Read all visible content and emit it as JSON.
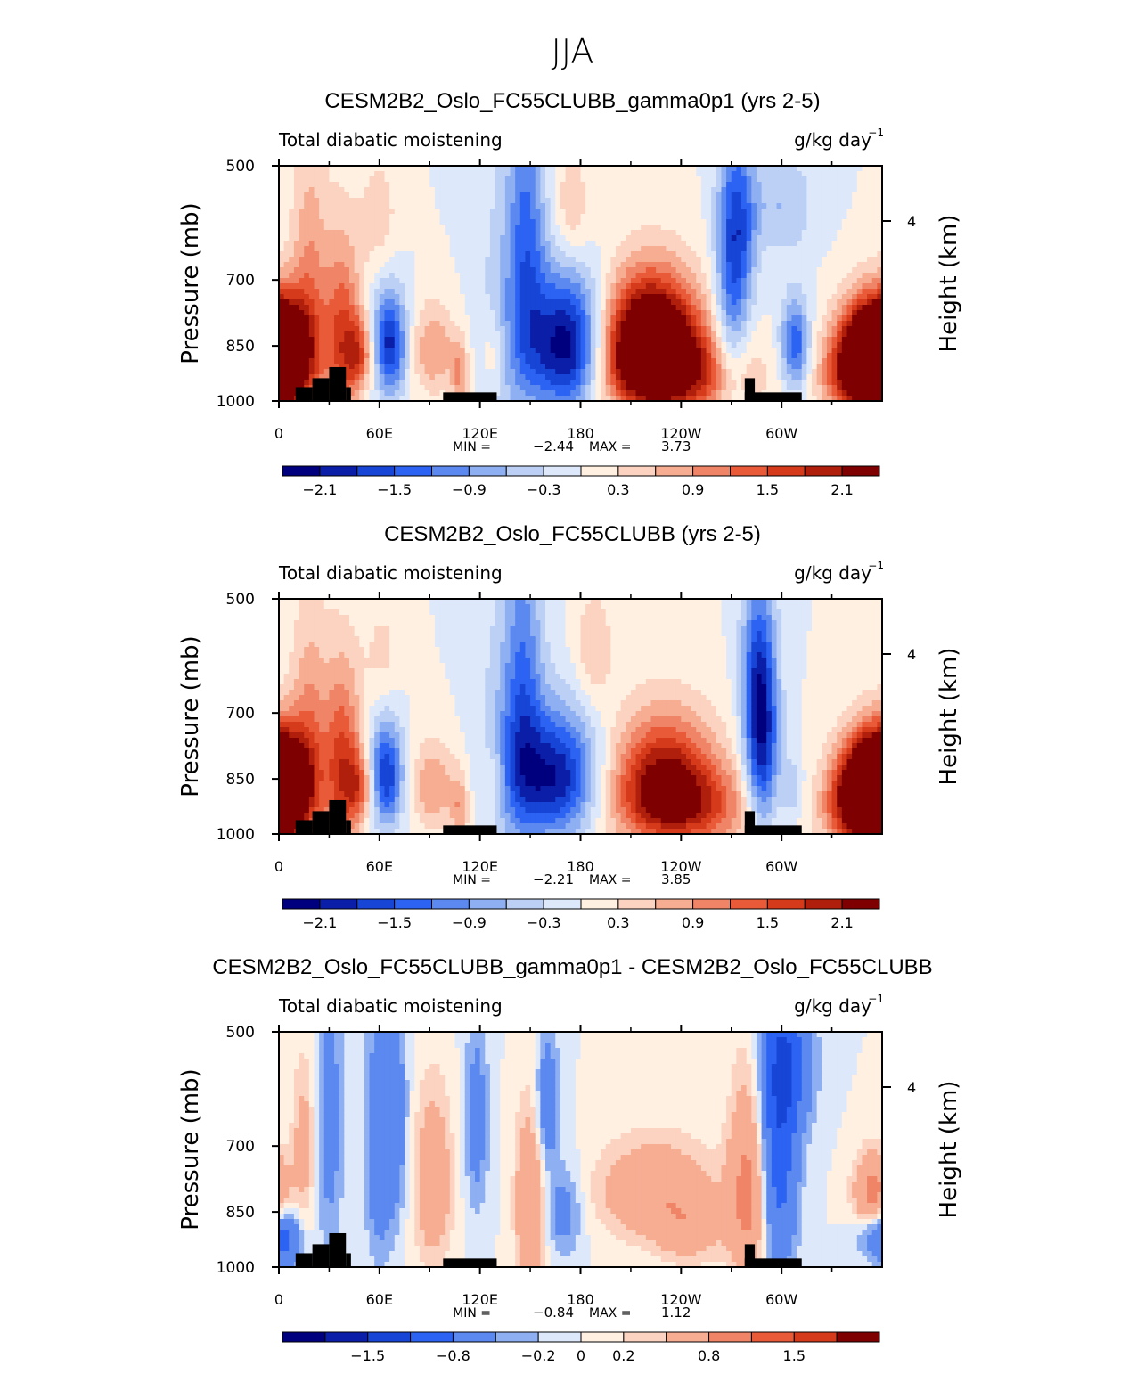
{
  "page_title": "JJA",
  "chart_data": [
    {
      "type": "heatmap",
      "title": "CESM2B2_Oslo_FC55CLUBB_gamma0p1 (yrs 2-5)",
      "left_label": "Total diabatic moistening",
      "right_label": "g/kg day",
      "right_label_sup": "−1",
      "ylabel": "Pressure (mb)",
      "ylabel_right": "Height (km)",
      "y_ticks": [
        "500",
        "700",
        "850",
        "1000"
      ],
      "y_right_ticks": [
        "4"
      ],
      "x_ticks": [
        "0",
        "60E",
        "120E",
        "180",
        "120W",
        "60W"
      ],
      "stats_min_label": "MIN =",
      "stats_min": "−2.44",
      "stats_max_label": "MAX =",
      "stats_max": "3.73",
      "colorbar_labels": [
        "−2.1",
        "−1.5",
        "−0.9",
        "−0.3",
        "0.3",
        "0.9",
        "1.5",
        "2.1"
      ],
      "features": [
        {
          "lon": 2,
          "p": 880,
          "v": 2.0,
          "sx": 10,
          "sy": 90
        },
        {
          "lon": 18,
          "p": 760,
          "v": 1.0,
          "sx": 8,
          "sy": 220
        },
        {
          "lon": 38,
          "p": 830,
          "v": 1.5,
          "sx": 8,
          "sy": 160
        },
        {
          "lon": 48,
          "p": 870,
          "v": 1.2,
          "sx": 6,
          "sy": 60
        },
        {
          "lon": 66,
          "p": 845,
          "v": -1.9,
          "sx": 7,
          "sy": 90
        },
        {
          "lon": 60,
          "p": 580,
          "v": 0.5,
          "sx": 8,
          "sy": 70
        },
        {
          "lon": 92,
          "p": 860,
          "v": 0.9,
          "sx": 9,
          "sy": 80
        },
        {
          "lon": 108,
          "p": 930,
          "v": 0.9,
          "sx": 4,
          "sy": 70
        },
        {
          "lon": 128,
          "p": 870,
          "v": 0.5,
          "sx": 5,
          "sy": 70
        },
        {
          "lon": 148,
          "p": 620,
          "v": -1.1,
          "sx": 8,
          "sy": 220
        },
        {
          "lon": 172,
          "p": 850,
          "v": -2.4,
          "sx": 16,
          "sy": 120
        },
        {
          "lon": 135,
          "p": 800,
          "v": -0.5,
          "sx": 12,
          "sy": 240
        },
        {
          "lon": 175,
          "p": 570,
          "v": 0.6,
          "sx": 8,
          "sy": 70
        },
        {
          "lon": 222,
          "p": 840,
          "v": 3.5,
          "sx": 20,
          "sy": 110
        },
        {
          "lon": 240,
          "p": 930,
          "v": 1.4,
          "sx": 30,
          "sy": 80
        },
        {
          "lon": 270,
          "p": 710,
          "v": -1.2,
          "sx": 7,
          "sy": 200
        },
        {
          "lon": 276,
          "p": 600,
          "v": -0.9,
          "sx": 7,
          "sy": 100
        },
        {
          "lon": 308,
          "p": 850,
          "v": -1.5,
          "sx": 6,
          "sy": 80
        },
        {
          "lon": 300,
          "p": 560,
          "v": -0.6,
          "sx": 14,
          "sy": 60
        },
        {
          "lon": 355,
          "p": 860,
          "v": 3.2,
          "sx": 14,
          "sy": 90
        },
        {
          "lon": 345,
          "p": 930,
          "v": 1.8,
          "sx": 14,
          "sy": 80
        }
      ]
    },
    {
      "type": "heatmap",
      "title": "CESM2B2_Oslo_FC55CLUBB (yrs 2-5)",
      "left_label": "Total diabatic moistening",
      "right_label": "g/kg day",
      "right_label_sup": "−1",
      "ylabel": "Pressure (mb)",
      "ylabel_right": "Height (km)",
      "y_ticks": [
        "500",
        "700",
        "850",
        "1000"
      ],
      "y_right_ticks": [
        "4"
      ],
      "x_ticks": [
        "0",
        "60E",
        "120E",
        "180",
        "120W",
        "60W"
      ],
      "stats_min_label": "MIN =",
      "stats_min": "−2.21",
      "stats_max_label": "MAX =",
      "stats_max": "3.85",
      "colorbar_labels": [
        "−2.1",
        "−1.5",
        "−0.9",
        "−0.3",
        "0.3",
        "0.9",
        "1.5",
        "2.1"
      ],
      "features": [
        {
          "lon": 2,
          "p": 880,
          "v": 2.0,
          "sx": 10,
          "sy": 90
        },
        {
          "lon": 18,
          "p": 780,
          "v": 1.0,
          "sx": 8,
          "sy": 200
        },
        {
          "lon": 38,
          "p": 820,
          "v": 1.6,
          "sx": 8,
          "sy": 160
        },
        {
          "lon": 48,
          "p": 870,
          "v": 1.1,
          "sx": 6,
          "sy": 60
        },
        {
          "lon": 64,
          "p": 840,
          "v": -1.8,
          "sx": 7,
          "sy": 90
        },
        {
          "lon": 62,
          "p": 590,
          "v": 0.4,
          "sx": 8,
          "sy": 70
        },
        {
          "lon": 92,
          "p": 870,
          "v": 0.9,
          "sx": 9,
          "sy": 80
        },
        {
          "lon": 108,
          "p": 930,
          "v": 0.8,
          "sx": 4,
          "sy": 70
        },
        {
          "lon": 128,
          "p": 870,
          "v": 0.6,
          "sx": 5,
          "sy": 70
        },
        {
          "lon": 146,
          "p": 640,
          "v": -1.0,
          "sx": 8,
          "sy": 200
        },
        {
          "lon": 165,
          "p": 845,
          "v": -2.1,
          "sx": 18,
          "sy": 110
        },
        {
          "lon": 135,
          "p": 800,
          "v": -0.5,
          "sx": 12,
          "sy": 240
        },
        {
          "lon": 188,
          "p": 580,
          "v": 0.6,
          "sx": 8,
          "sy": 70
        },
        {
          "lon": 230,
          "p": 845,
          "v": 2.0,
          "sx": 22,
          "sy": 110
        },
        {
          "lon": 245,
          "p": 930,
          "v": 1.2,
          "sx": 30,
          "sy": 80
        },
        {
          "lon": 288,
          "p": 760,
          "v": -2.1,
          "sx": 7,
          "sy": 160
        },
        {
          "lon": 285,
          "p": 600,
          "v": -0.7,
          "sx": 7,
          "sy": 100
        },
        {
          "lon": 306,
          "p": 880,
          "v": -0.6,
          "sx": 5,
          "sy": 60
        },
        {
          "lon": 355,
          "p": 860,
          "v": 3.3,
          "sx": 14,
          "sy": 90
        },
        {
          "lon": 345,
          "p": 930,
          "v": 1.6,
          "sx": 14,
          "sy": 80
        }
      ]
    },
    {
      "type": "heatmap",
      "title": "CESM2B2_Oslo_FC55CLUBB_gamma0p1 - CESM2B2_Oslo_FC55CLUBB",
      "left_label": "Total diabatic moistening",
      "right_label": "g/kg day",
      "right_label_sup": "−1",
      "ylabel": "Pressure (mb)",
      "ylabel_right": "Height (km)",
      "y_ticks": [
        "500",
        "700",
        "850",
        "1000"
      ],
      "y_right_ticks": [
        "4"
      ],
      "x_ticks": [
        "0",
        "60E",
        "120E",
        "180",
        "120W",
        "60W"
      ],
      "stats_min_label": "MIN =",
      "stats_min": "−0.84",
      "stats_max_label": "MAX =",
      "stats_max": "1.12",
      "colorbar_labels": [
        "−1.5",
        "−0.8",
        "−0.2",
        "0",
        "0.2",
        "0.8",
        "1.5"
      ],
      "features": [
        {
          "lon": 5,
          "p": 920,
          "v": -0.5,
          "sx": 6,
          "sy": 60
        },
        {
          "lon": 15,
          "p": 700,
          "v": 0.3,
          "sx": 5,
          "sy": 120
        },
        {
          "lon": 30,
          "p": 650,
          "v": -0.3,
          "sx": 6,
          "sy": 200
        },
        {
          "lon": 60,
          "p": 700,
          "v": -0.4,
          "sx": 6,
          "sy": 180
        },
        {
          "lon": 70,
          "p": 650,
          "v": -0.3,
          "sx": 5,
          "sy": 150
        },
        {
          "lon": 92,
          "p": 780,
          "v": 0.4,
          "sx": 8,
          "sy": 140
        },
        {
          "lon": 118,
          "p": 650,
          "v": -0.3,
          "sx": 5,
          "sy": 140
        },
        {
          "lon": 150,
          "p": 830,
          "v": 0.5,
          "sx": 6,
          "sy": 150
        },
        {
          "lon": 160,
          "p": 620,
          "v": -0.4,
          "sx": 5,
          "sy": 90
        },
        {
          "lon": 170,
          "p": 850,
          "v": -0.3,
          "sx": 8,
          "sy": 80
        },
        {
          "lon": 225,
          "p": 800,
          "v": 0.45,
          "sx": 24,
          "sy": 80
        },
        {
          "lon": 245,
          "p": 900,
          "v": 0.3,
          "sx": 14,
          "sy": 60
        },
        {
          "lon": 280,
          "p": 800,
          "v": 0.6,
          "sx": 8,
          "sy": 160
        },
        {
          "lon": 298,
          "p": 700,
          "v": -0.7,
          "sx": 8,
          "sy": 200
        },
        {
          "lon": 305,
          "p": 550,
          "v": -0.5,
          "sx": 10,
          "sy": 80
        },
        {
          "lon": 355,
          "p": 820,
          "v": 0.7,
          "sx": 8,
          "sy": 70
        },
        {
          "lon": 355,
          "p": 900,
          "v": -0.5,
          "sx": 8,
          "sy": 50
        }
      ]
    }
  ],
  "colors": {
    "neg": [
      "#00007f",
      "#0b1ea8",
      "#1745d6",
      "#2c63f2",
      "#5b89f0",
      "#8eaff2",
      "#bcd0f5",
      "#dde8fa"
    ],
    "pos": [
      "#fff0e2",
      "#fbd3c0",
      "#f6ad92",
      "#f08466",
      "#e95a38",
      "#d53a1a",
      "#b01e0c",
      "#7f0000"
    ],
    "diff_neg": [
      "#00007f",
      "#0b1ea8",
      "#1745d6",
      "#2c63f2",
      "#5b89f0",
      "#8eaff2",
      "#dde8fa"
    ],
    "diff_pos": [
      "#fff0e2",
      "#fbd3c0",
      "#f6ad92",
      "#f08466",
      "#e95a38",
      "#d53a1a",
      "#7f0000"
    ],
    "topo": "#000000"
  }
}
